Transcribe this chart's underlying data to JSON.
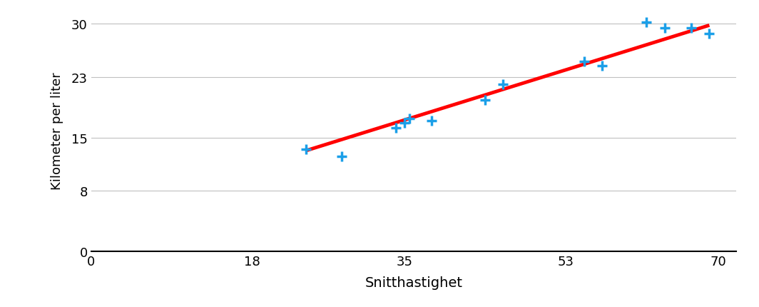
{
  "scatter_x": [
    24,
    28,
    34,
    35,
    35.5,
    38,
    44,
    46,
    55,
    57,
    62,
    64,
    67,
    69
  ],
  "scatter_y": [
    13.5,
    12.5,
    16.3,
    17.0,
    17.5,
    17.2,
    20.0,
    22.0,
    25.0,
    24.5,
    30.2,
    29.5,
    29.5,
    28.7
  ],
  "trend_x": [
    24,
    69
  ],
  "trend_y": [
    13.3,
    29.8
  ],
  "xlabel": "Snitthastighet",
  "ylabel": "Kilometer per liter",
  "xlim": [
    0,
    72
  ],
  "ylim": [
    0,
    32
  ],
  "xticks": [
    0,
    18,
    35,
    53,
    70
  ],
  "yticks": [
    0,
    8,
    15,
    23,
    30
  ],
  "scatter_color": "#1B9FE8",
  "trend_color": "#FF0000",
  "background_color": "#FFFFFF",
  "grid_color": "#C0C0C0",
  "marker_size": 100,
  "trend_linewidth": 3.5
}
